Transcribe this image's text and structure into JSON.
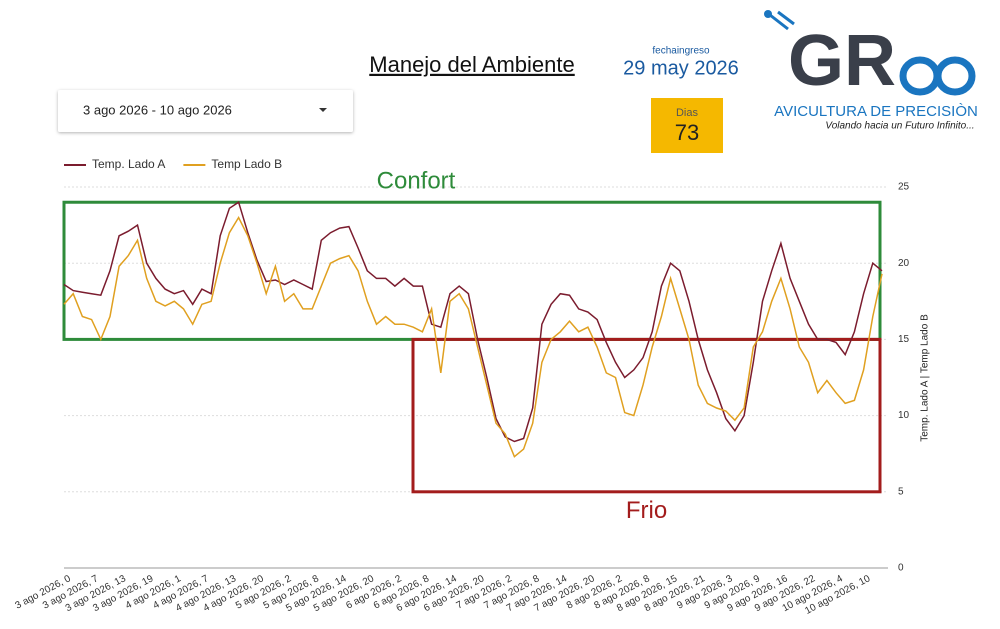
{
  "filter": {
    "date_range": "3 ago 2026 - 10 ago 2026"
  },
  "header": {
    "date_label": "fechaingreso",
    "date": "29 may 2026",
    "days_label": "Dias",
    "days": 73
  },
  "logo": {
    "brand": "GR",
    "name": "AVICULTURA DE PRECISIÒN",
    "tagline": "Volando hacia un Futuro Infinito..."
  },
  "chart_data": {
    "type": "line",
    "title": "Manejo del Ambiente",
    "y_label": "Temp. Lado A | Temp Lado B",
    "ylim": [
      0,
      25
    ],
    "yticks": [
      0,
      5,
      10,
      15,
      20,
      25
    ],
    "grid": true,
    "legend": "top-left",
    "zones": [
      {
        "label": "Confort",
        "from": 15,
        "to": 24,
        "color": "#2e8b3a",
        "label_side": "above"
      },
      {
        "label": "Frio",
        "from": 5,
        "to": 15,
        "color": "#a31c1c",
        "label_side": "below"
      }
    ],
    "categories": [
      "3 ago 2026, 0",
      null,
      null,
      "3 ago 2026, 7",
      null,
      null,
      "3 ago 2026, 13",
      null,
      null,
      "3 ago 2026, 19",
      null,
      null,
      "4 ago 2026, 1",
      null,
      null,
      "4 ago 2026, 7",
      null,
      null,
      "4 ago 2026, 13",
      null,
      null,
      "4 ago 2026, 20",
      null,
      null,
      "5 ago 2026, 2",
      null,
      null,
      "5 ago 2026, 8",
      null,
      null,
      "5 ago 2026, 14",
      null,
      null,
      "5 ago 2026, 20",
      null,
      null,
      "6 ago 2026, 2",
      null,
      null,
      "6 ago 2026, 8",
      null,
      null,
      "6 ago 2026, 14",
      null,
      null,
      "6 ago 2026, 20",
      null,
      null,
      "7 ago 2026, 2",
      null,
      null,
      "7 ago 2026, 8",
      null,
      null,
      "7 ago 2026, 14",
      null,
      null,
      "7 ago 2026, 20",
      null,
      null,
      "8 ago 2026, 2",
      null,
      null,
      "8 ago 2026, 8",
      null,
      null,
      "8 ago 2026, 15",
      null,
      null,
      "8 ago 2026, 21",
      null,
      null,
      "9 ago 2026, 3",
      null,
      null,
      "9 ago 2026, 9",
      null,
      null,
      "9 ago 2026, 16",
      null,
      null,
      "9 ago 2026, 22",
      null,
      null,
      "10 ago 2026, 4",
      null,
      null,
      "10 ago 2026, 10",
      null,
      null
    ],
    "series": [
      {
        "name": "Temp. Lado A",
        "color": "#7b1c2e",
        "values": [
          18.6,
          18.2,
          18.1,
          18.0,
          17.9,
          19.5,
          21.8,
          22.1,
          22.5,
          20.0,
          19.0,
          18.3,
          18.0,
          18.2,
          17.3,
          18.3,
          18.0,
          21.8,
          23.6,
          24.0,
          22.0,
          20.2,
          18.8,
          18.9,
          18.6,
          18.9,
          18.6,
          18.3,
          21.5,
          22.0,
          22.3,
          22.4,
          21.0,
          19.5,
          19.0,
          19.0,
          18.5,
          19.0,
          18.5,
          18.5,
          16.0,
          15.8,
          18.0,
          18.5,
          18.0,
          15.0,
          12.5,
          9.8,
          8.6,
          8.3,
          8.5,
          10.5,
          16.0,
          17.3,
          18.0,
          17.9,
          17.0,
          16.8,
          16.3,
          14.8,
          13.5,
          12.5,
          13.0,
          13.8,
          15.5,
          18.5,
          20.0,
          19.5,
          17.5,
          15.0,
          13.0,
          11.5,
          9.8,
          9.0,
          10.0,
          13.5,
          17.5,
          19.5,
          21.3,
          19.0,
          17.5,
          16.0,
          15.0,
          15.0,
          14.8,
          14.0,
          15.5,
          18.0,
          20.0,
          19.5
        ]
      },
      {
        "name": "Temp Lado B",
        "color": "#e0a020",
        "values": [
          17.3,
          18.0,
          16.5,
          16.3,
          15.0,
          16.5,
          19.8,
          20.5,
          21.5,
          19.0,
          17.5,
          17.2,
          17.5,
          17.0,
          16.0,
          17.3,
          17.5,
          20.0,
          22.0,
          23.0,
          21.8,
          20.0,
          18.0,
          19.8,
          17.5,
          18.0,
          17.0,
          17.0,
          18.5,
          20.0,
          20.3,
          20.5,
          19.5,
          17.5,
          16.0,
          16.5,
          16.0,
          16.0,
          15.8,
          15.5,
          17.0,
          12.8,
          17.5,
          18.0,
          17.0,
          14.5,
          12.0,
          9.5,
          8.8,
          7.3,
          7.8,
          9.5,
          13.5,
          15.0,
          15.5,
          16.2,
          15.5,
          15.8,
          14.5,
          12.8,
          12.5,
          10.2,
          10.0,
          12.0,
          14.5,
          16.5,
          19.0,
          17.0,
          15.0,
          12.0,
          10.8,
          10.5,
          10.3,
          9.7,
          10.5,
          14.5,
          15.5,
          17.5,
          19.0,
          17.0,
          14.5,
          13.5,
          11.5,
          12.3,
          11.5,
          10.8,
          11.0,
          13.0,
          16.5,
          19.3
        ]
      }
    ]
  }
}
